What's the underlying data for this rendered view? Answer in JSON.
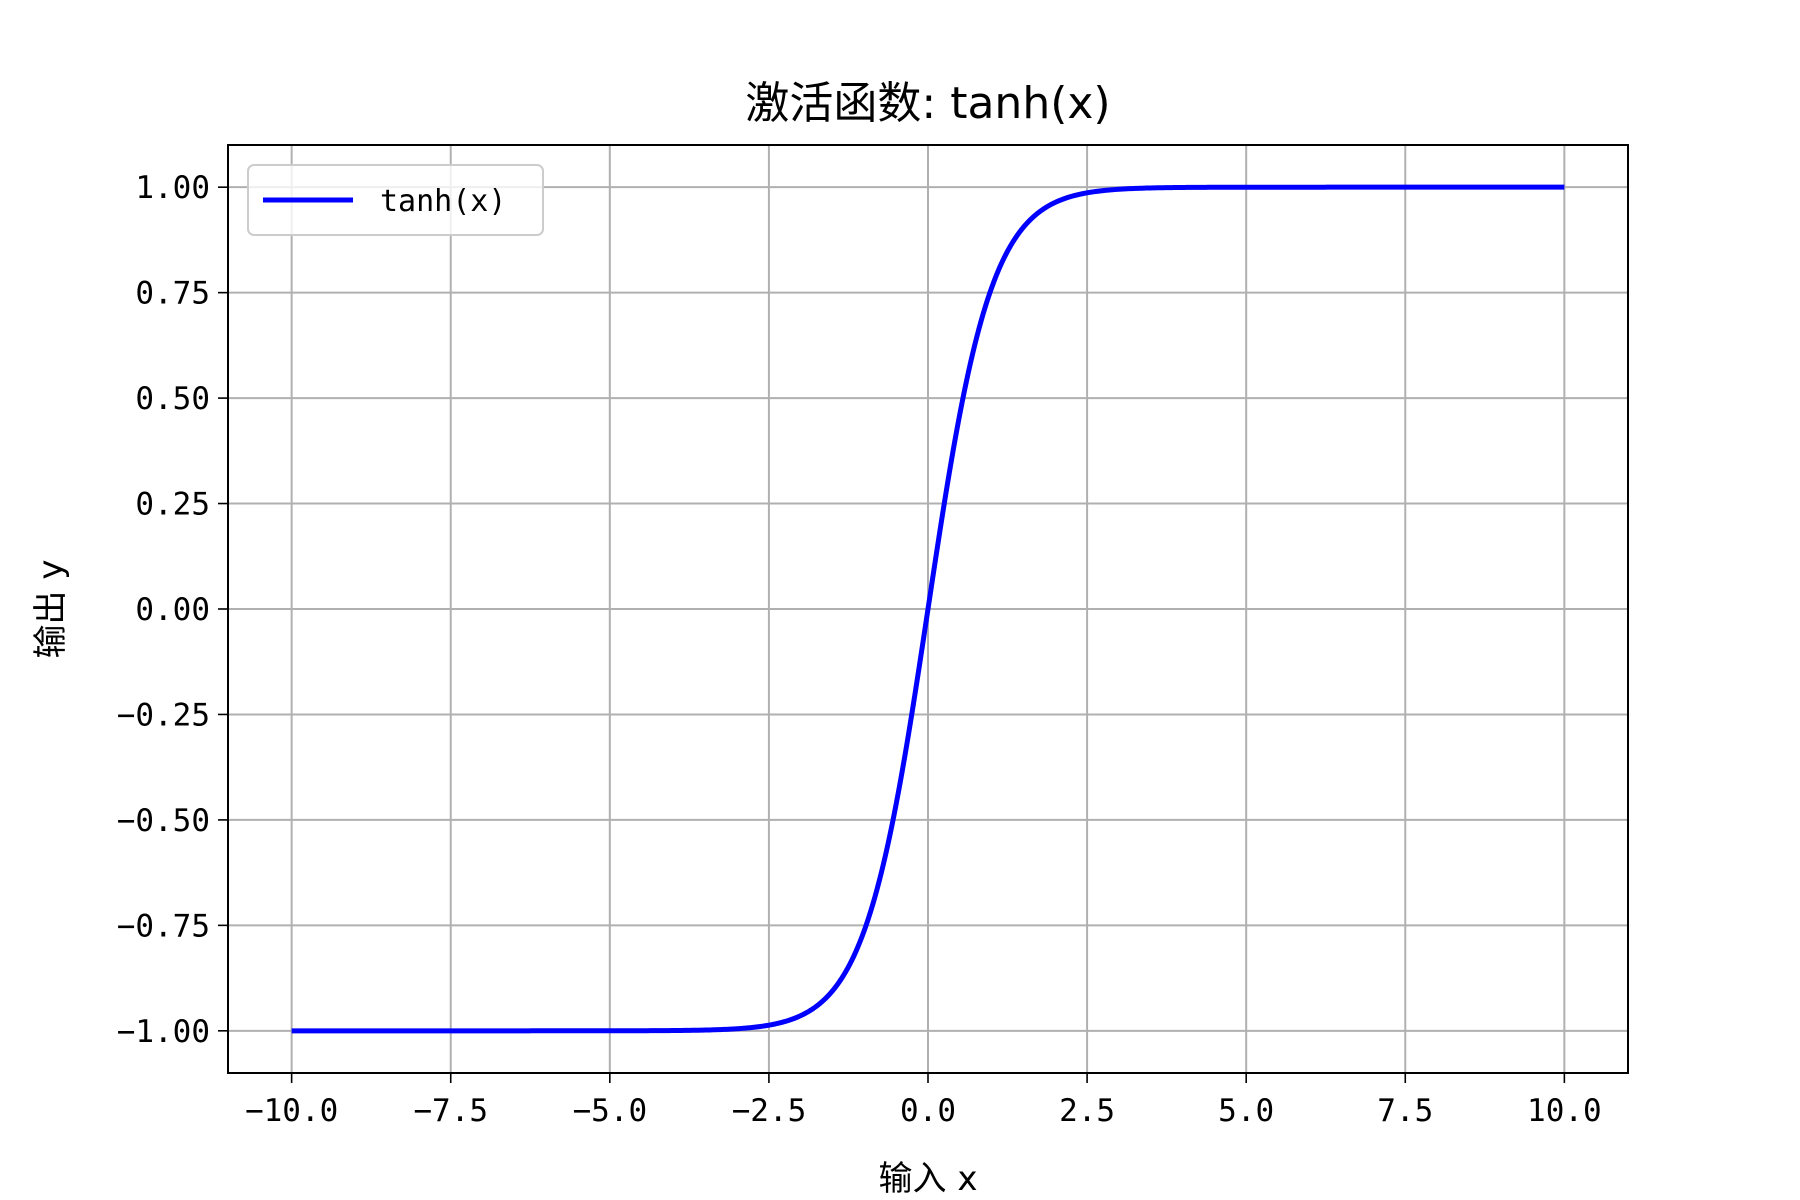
{
  "chart_data": {
    "type": "line",
    "title": "激活函数: tanh(x)",
    "xlabel": "输入 x",
    "ylabel": "输出 y",
    "xlim": [
      -11,
      11
    ],
    "ylim": [
      -1.1,
      1.1
    ],
    "xticks": [
      -10.0,
      -7.5,
      -5.0,
      -2.5,
      0.0,
      2.5,
      5.0,
      7.5,
      10.0
    ],
    "xtick_labels": [
      "-10.0",
      "-7.5",
      "-5.0",
      "-2.5",
      "0.0",
      "2.5",
      "5.0",
      "7.5",
      "10.0"
    ],
    "yticks": [
      -1.0,
      -0.75,
      -0.5,
      -0.25,
      0.0,
      0.25,
      0.5,
      0.75,
      1.0
    ],
    "ytick_labels": [
      "-1.00",
      "-0.75",
      "-0.50",
      "-0.25",
      "0.00",
      "0.25",
      "0.50",
      "0.75",
      "1.00"
    ],
    "grid": true,
    "legend_position": "top-left",
    "series": [
      {
        "name": "tanh(x)",
        "color": "#0000ff",
        "function": "tanh",
        "x_range": [
          -10,
          10
        ],
        "x": [
          -10,
          -9,
          -8,
          -7,
          -6,
          -5,
          -4,
          -3,
          -2.5,
          -2,
          -1.5,
          -1,
          -0.75,
          -0.5,
          -0.25,
          0,
          0.25,
          0.5,
          0.75,
          1,
          1.5,
          2,
          2.5,
          3,
          4,
          5,
          6,
          7,
          8,
          9,
          10
        ],
        "y": [
          -1.0,
          -1.0,
          -1.0,
          -1.0,
          -1.0,
          -0.9999,
          -0.9993,
          -0.9951,
          -0.9866,
          -0.964,
          -0.9051,
          -0.7616,
          -0.6351,
          -0.4621,
          -0.2449,
          0.0,
          0.2449,
          0.4621,
          0.6351,
          0.7616,
          0.9051,
          0.964,
          0.9866,
          0.9951,
          0.9993,
          0.9999,
          1.0,
          1.0,
          1.0,
          1.0,
          1.0
        ]
      }
    ]
  }
}
